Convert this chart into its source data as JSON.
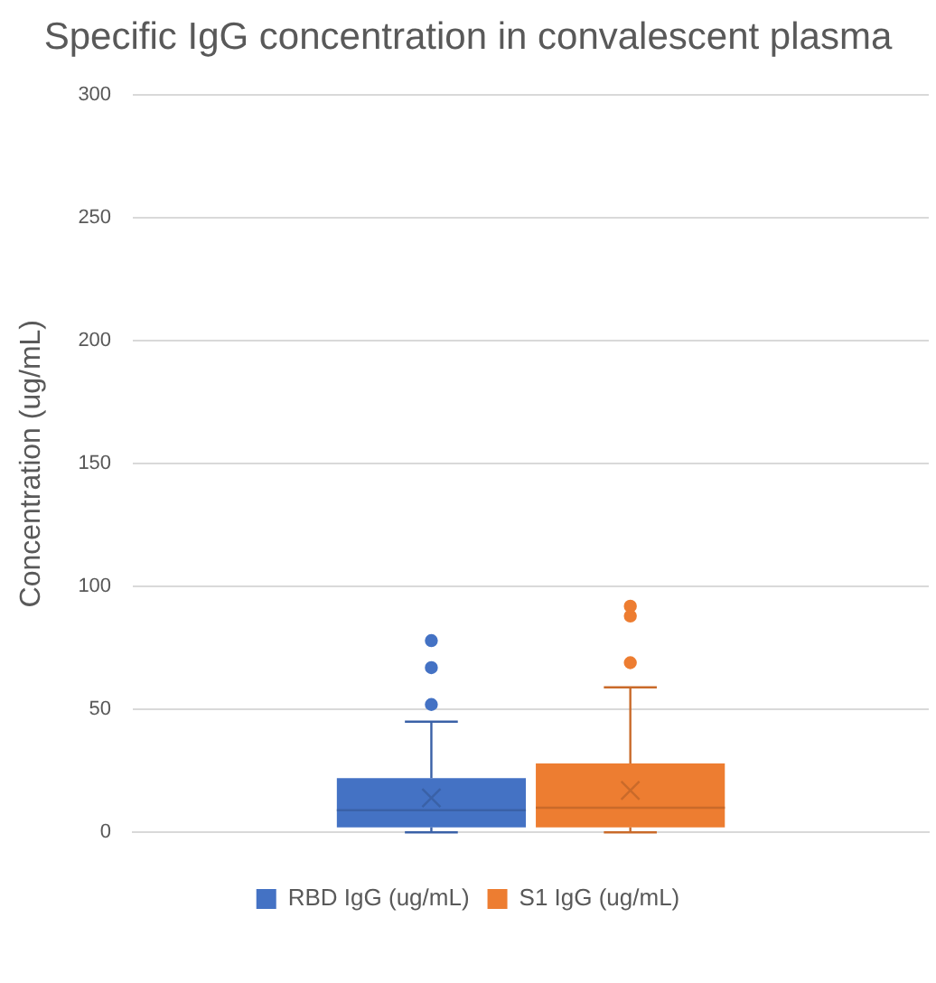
{
  "chart_data": {
    "type": "box",
    "title": "Specific IgG concentration in convalescent plasma",
    "ylabel": "Concentration (ug/mL)",
    "categories": [
      null
    ],
    "series": [
      {
        "name": "RBD IgG (ug/mL)",
        "color": "#4472c4",
        "boxes": [
          {
            "low": 0,
            "q1": 2,
            "median": 9,
            "q3": 22,
            "high": 45,
            "mean": 14,
            "outliers": [
              52,
              67,
              78
            ]
          }
        ]
      },
      {
        "name": "S1 IgG (ug/mL)",
        "color": "#ed7d31",
        "boxes": [
          {
            "low": 0,
            "q1": 2,
            "median": 10,
            "q3": 28,
            "high": 59,
            "mean": 17,
            "outliers": [
              69,
              88,
              92
            ]
          }
        ]
      }
    ],
    "ylim": [
      0,
      300
    ],
    "yticks": [
      0,
      50,
      100,
      150,
      200,
      250,
      300
    ],
    "grid": "y",
    "legend": "bottom",
    "marker": "circle"
  }
}
